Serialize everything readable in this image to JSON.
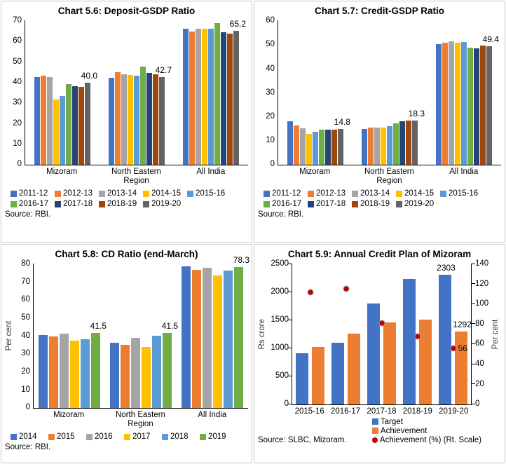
{
  "chart_data": [
    {
      "type": "bar",
      "title": "Chart 5.6: Deposit-GSDP Ratio",
      "source": "Source: RBI.",
      "categories": [
        "Mizoram",
        "North Eastern Region",
        "All India"
      ],
      "series": [
        {
          "name": "2011-12",
          "color": "#4472C4",
          "values": [
            42.7,
            42.4,
            66.3
          ]
        },
        {
          "name": "2012-13",
          "color": "#ED7D31",
          "values": [
            43.2,
            44.9,
            64.8
          ]
        },
        {
          "name": "2013-14",
          "color": "#A5A5A5",
          "values": [
            42.5,
            43.9,
            66.3
          ]
        },
        {
          "name": "2014-15",
          "color": "#FFC000",
          "values": [
            31.8,
            43.5,
            66.3
          ]
        },
        {
          "name": "2015-16",
          "color": "#5B9BD5",
          "values": [
            33.4,
            43.3,
            66.2
          ]
        },
        {
          "name": "2016-17",
          "color": "#70AD47",
          "values": [
            39.2,
            47.8,
            69.0
          ]
        },
        {
          "name": "2017-18",
          "color": "#264478",
          "values": [
            38.3,
            44.8,
            64.4
          ]
        },
        {
          "name": "2018-19",
          "color": "#9E480E",
          "values": [
            37.9,
            43.8,
            63.6
          ]
        },
        {
          "name": "2019-20",
          "color": "#636363",
          "values": [
            40.0,
            42.7,
            65.2
          ]
        }
      ],
      "annotations": [
        "40.0",
        "42.7",
        "65.2"
      ],
      "ylabel": "",
      "ylim": [
        0,
        70
      ],
      "ystep": 10,
      "legend_position": "bottom",
      "grid": false
    },
    {
      "type": "bar",
      "title": "Chart 5.7: Credit-GSDP Ratio",
      "source": "Source: RBI.",
      "categories": [
        "Mizoram",
        "North Eastern Region",
        "All India"
      ],
      "series": [
        {
          "name": "2011-12",
          "color": "#4472C4",
          "values": [
            18.0,
            14.9,
            50.3
          ]
        },
        {
          "name": "2012-13",
          "color": "#ED7D31",
          "values": [
            16.4,
            15.4,
            50.7
          ]
        },
        {
          "name": "2013-14",
          "color": "#A5A5A5",
          "values": [
            15.2,
            15.5,
            51.3
          ]
        },
        {
          "name": "2014-15",
          "color": "#FFC000",
          "values": [
            12.8,
            15.5,
            50.7
          ]
        },
        {
          "name": "2015-16",
          "color": "#5B9BD5",
          "values": [
            13.8,
            15.9,
            51.0
          ]
        },
        {
          "name": "2016-17",
          "color": "#70AD47",
          "values": [
            14.5,
            17.1,
            48.7
          ]
        },
        {
          "name": "2017-18",
          "color": "#264478",
          "values": [
            14.6,
            18.1,
            48.4
          ]
        },
        {
          "name": "2018-19",
          "color": "#9E480E",
          "values": [
            14.6,
            18.4,
            49.6
          ]
        },
        {
          "name": "2019-20",
          "color": "#636363",
          "values": [
            14.8,
            18.3,
            49.4
          ]
        }
      ],
      "annotations": [
        "14.8",
        "18.3",
        "49.4"
      ],
      "ylabel": "",
      "ylim": [
        0,
        60
      ],
      "ystep": 10,
      "legend_position": "bottom",
      "grid": false
    },
    {
      "type": "bar",
      "title": "Chart 5.8: CD Ratio (end-March)",
      "source": "Source: RBI.",
      "categories": [
        "Mizoram",
        "North Eastern Region",
        "All India"
      ],
      "series": [
        {
          "name": "2014",
          "color": "#4472C4",
          "values": [
            40.4,
            36.3,
            78.8
          ]
        },
        {
          "name": "2015",
          "color": "#ED7D31",
          "values": [
            39.5,
            35.0,
            76.7
          ]
        },
        {
          "name": "2016",
          "color": "#A5A5A5",
          "values": [
            41.3,
            39.1,
            78.0
          ]
        },
        {
          "name": "2017",
          "color": "#FFC000",
          "values": [
            37.5,
            34.0,
            73.5
          ]
        },
        {
          "name": "2018",
          "color": "#5B9BD5",
          "values": [
            38.0,
            40.2,
            76.3
          ]
        },
        {
          "name": "2019",
          "color": "#70AD47",
          "values": [
            41.5,
            41.5,
            78.3
          ]
        }
      ],
      "annotations": [
        "41.5",
        "41.5",
        "78.3"
      ],
      "ylabel": "Per cent",
      "ylim": [
        0,
        80
      ],
      "ystep": 10,
      "legend_position": "bottom",
      "grid": false
    },
    {
      "type": "bar",
      "subtype": "dual-axis-bar-dot",
      "title": "Chart 5.9: Annual Credit Plan of Mizoram",
      "source": "Source: SLBC, Mizoram.",
      "categories": [
        "2015-16",
        "2016-17",
        "2017-18",
        "2018-19",
        "2019-20"
      ],
      "series": [
        {
          "name": "Target",
          "kind": "bar",
          "axis": "left",
          "color": "#4472C4",
          "values": [
            910,
            1095,
            1800,
            2235,
            2303
          ]
        },
        {
          "name": "Achievement",
          "kind": "bar",
          "axis": "left",
          "color": "#ED7D31",
          "values": [
            1016,
            1254,
            1456,
            1504,
            1292
          ]
        },
        {
          "name": "Achievement (%) (Rt. Scale)",
          "kind": "dot",
          "axis": "right",
          "color": "#C00000",
          "values": [
            112,
            115,
            81,
            68,
            56
          ]
        }
      ],
      "annotations": [
        {
          "text": "2303",
          "series": 0,
          "index": 4,
          "pos": "above"
        },
        {
          "text": "1292",
          "series": 1,
          "index": 4,
          "pos": "above"
        },
        {
          "text": "56",
          "series": 2,
          "index": 4,
          "pos": "right"
        }
      ],
      "ylabel_left": "Rs crore",
      "ylabel_right": "Per cent",
      "ylim_left": [
        0,
        2500
      ],
      "ystep_left": 500,
      "ylim_right": [
        0,
        140
      ],
      "ystep_right": 20,
      "legend_position": "bottom-right",
      "grid": false
    }
  ]
}
